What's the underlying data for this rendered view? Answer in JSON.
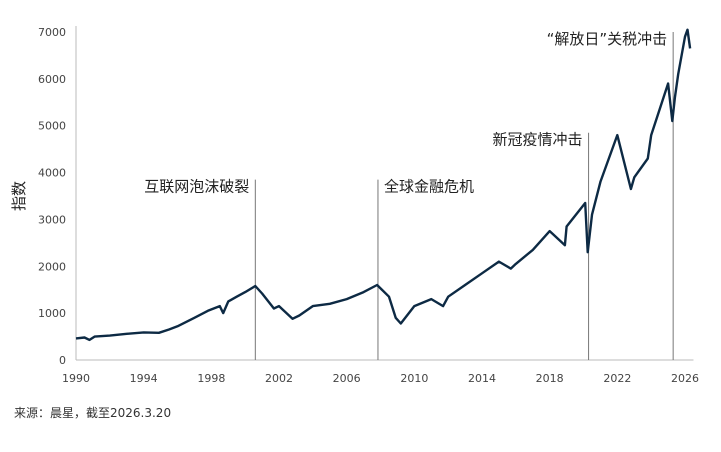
{
  "chart_data": {
    "type": "line",
    "title": "",
    "xlabel": "",
    "ylabel": "指数",
    "xlim": [
      1990,
      2026.5
    ],
    "ylim": [
      0,
      7000
    ],
    "x_ticks": [
      1990,
      1994,
      1998,
      2002,
      2006,
      2010,
      2014,
      2018,
      2022,
      2026
    ],
    "y_ticks": [
      0,
      1000,
      2000,
      3000,
      4000,
      5000,
      6000,
      7000
    ],
    "grid": false,
    "line_color": "#0d2a44",
    "series": [
      {
        "x": [
          1990,
          1990.5,
          1990.8,
          1991.1,
          1992,
          1993,
          1994,
          1994.9,
          1995.5,
          1996,
          1997,
          1997.8,
          1998.5,
          1998.7,
          1999,
          1999.5,
          2000,
          2000.6,
          2001,
          2001.7,
          2002,
          2002.8,
          2003.2,
          2004,
          2005,
          2006,
          2007,
          2007.8,
          2008.5,
          2008.9,
          2009.2,
          2010,
          2011,
          2011.7,
          2012,
          2013,
          2014,
          2015,
          2015.7,
          2016,
          2017,
          2018,
          2018.9,
          2019,
          2020.1,
          2020.25,
          2020.5,
          2021,
          2022,
          2022.8,
          2023,
          2023.8,
          2024,
          2025,
          2025.25,
          2025.4,
          2025.6,
          2026,
          2026.15,
          2026.3
        ],
        "y": [
          460,
          480,
          430,
          500,
          520,
          560,
          590,
          580,
          650,
          720,
          900,
          1050,
          1150,
          1000,
          1250,
          1350,
          1450,
          1580,
          1420,
          1100,
          1150,
          880,
          950,
          1150,
          1200,
          1300,
          1450,
          1600,
          1350,
          900,
          780,
          1150,
          1300,
          1150,
          1350,
          1600,
          1850,
          2100,
          1950,
          2050,
          2350,
          2750,
          2450,
          2850,
          3350,
          2300,
          3100,
          3800,
          4800,
          3650,
          3900,
          4300,
          4800,
          5900,
          5100,
          5600,
          6100,
          6900,
          7050,
          6650
        ]
      }
    ],
    "annotations": [
      {
        "x": 2000.6,
        "label": "互联网泡沫破裂",
        "top": 3850
      },
      {
        "x": 2007.85,
        "label": "全球金融危机",
        "top": 3850
      },
      {
        "x": 2020.3,
        "label": "新冠疫情冲击",
        "top": 4850
      },
      {
        "x": 2025.3,
        "label": "“解放日”关税冲击",
        "top": 7000
      }
    ]
  },
  "source": "来源：晨星，截至2026.3.20"
}
